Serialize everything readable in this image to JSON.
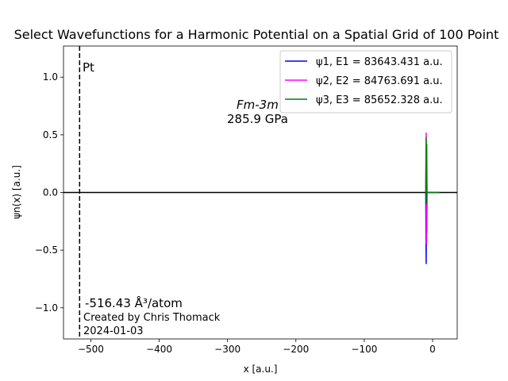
{
  "chart_data": {
    "type": "line",
    "title": "Select Wavefunctions for a Harmonic Potential on a Spatial Grid of 100 Point",
    "xlabel": "x [a.u.]",
    "ylabel": "ψn(x) [a.u.]",
    "xlim": [
      -540,
      36
    ],
    "ylim": [
      -1.27,
      1.27
    ],
    "xticks": [
      -500,
      -400,
      -300,
      -200,
      -100,
      0
    ],
    "xtick_labels": [
      "−500",
      "−400",
      "−300",
      "−200",
      "−100",
      "0"
    ],
    "yticks": [
      1.0,
      0.5,
      0.0,
      -0.5,
      -1.0
    ],
    "ytick_labels": [
      "1.0",
      "0.5",
      "0.0",
      "−0.5",
      "−1.0"
    ],
    "grid": false,
    "legend_position": "top-right",
    "series": [
      {
        "name": "ψ1, E1 = 83643.431 a.u.",
        "color": "#0000ff",
        "x": [
          -10,
          -9.4,
          -9.0,
          -8.6,
          -8.2,
          10
        ],
        "y": [
          0,
          -0.62,
          0.0,
          -0.35,
          0.0,
          0.0
        ]
      },
      {
        "name": "ψ2, E2 = 84763.691 a.u.",
        "color": "#ff00ff",
        "x": [
          -10,
          -9.4,
          -9.0,
          -8.6,
          -8.2,
          10
        ],
        "y": [
          0,
          0.52,
          -0.45,
          0.2,
          0.0,
          0.0
        ]
      },
      {
        "name": "ψ3, E3 = 85652.328 a.u.",
        "color": "#008000",
        "x": [
          -10,
          -9.4,
          -9.0,
          -8.6,
          -8.2,
          10
        ],
        "y": [
          0,
          0.48,
          -0.1,
          0.42,
          0.0,
          0.0
        ]
      }
    ],
    "hline": {
      "y": 0,
      "color": "#000000"
    },
    "vline": {
      "x": -516.43,
      "color": "#000000",
      "style": "dashed"
    },
    "annotations": {
      "element": "Pt",
      "space_group": "Fm-3m",
      "pressure": "285.9 GPa",
      "volume": "-516.43 Å³/atom",
      "author": "Created by Chris Thomack",
      "date": "2024-01-03"
    }
  }
}
